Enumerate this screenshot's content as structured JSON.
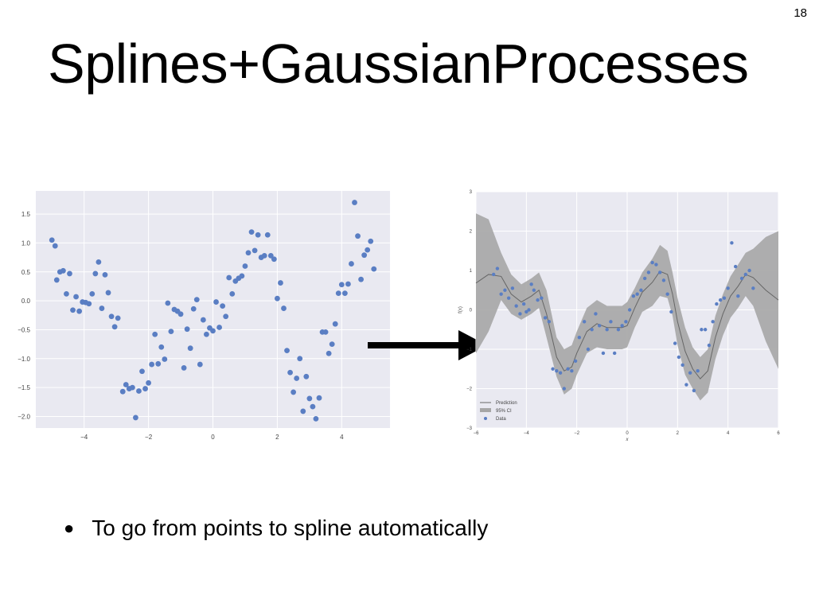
{
  "slide": {
    "page_number": "18",
    "title": "Splines+GaussianProcesses",
    "bullets": [
      "To go from points to spline automatically"
    ]
  },
  "colors": {
    "plot_background": "#e9e9f1",
    "grid": "#ffffff",
    "points": "#5a7ec3",
    "prediction_line": "#666666",
    "ci_band": "#a6a6a6",
    "arrow": "#000000"
  },
  "chart_data": [
    {
      "type": "scatter",
      "title": "",
      "xlabel": "",
      "ylabel": "",
      "xlim": [
        -5.5,
        5.5
      ],
      "ylim": [
        -2.2,
        1.9
      ],
      "xticks": [
        -4,
        -2,
        0,
        2,
        4
      ],
      "xtick_labels": [
        "−4",
        "−2",
        "0",
        "2",
        "4"
      ],
      "yticks": [
        1.5,
        1.0,
        0.5,
        0.0,
        -0.5,
        -1.0,
        -1.5,
        -2.0
      ],
      "ytick_labels": [
        "1.5",
        "1.0",
        "0.5",
        "0.0",
        "−0.5",
        "−1.0",
        "−1.5",
        "−2.0"
      ],
      "grid": true,
      "series": [
        {
          "x": [
            -5.0,
            -4.9,
            -4.85,
            -4.75,
            -4.65,
            -4.55,
            -4.45,
            -4.35,
            -4.25,
            -4.15,
            -4.05,
            -3.95,
            -3.85,
            -3.75,
            -3.65,
            -3.55,
            -3.45,
            -3.35,
            -3.25,
            -3.15,
            -3.05,
            -2.95,
            -2.8,
            -2.7,
            -2.6,
            -2.5,
            -2.4,
            -2.3,
            -2.2,
            -2.1,
            -2.0,
            -1.9,
            -1.8,
            -1.7,
            -1.6,
            -1.5,
            -1.4,
            -1.3,
            -1.2,
            -1.1,
            -1.0,
            -0.9,
            -0.8,
            -0.7,
            -0.6,
            -0.5,
            -0.4,
            -0.3,
            -0.2,
            -0.1,
            0.0,
            0.1,
            0.2,
            0.3,
            0.4,
            0.5,
            0.6,
            0.7,
            0.8,
            0.9,
            1.0,
            1.1,
            1.2,
            1.3,
            1.4,
            1.5,
            1.6,
            1.7,
            1.8,
            1.9,
            2.0,
            2.1,
            2.2,
            2.3,
            2.4,
            2.5,
            2.6,
            2.7,
            2.8,
            2.9,
            3.0,
            3.1,
            3.2,
            3.3,
            3.4,
            3.5,
            3.6,
            3.7,
            3.8,
            3.9,
            4.0,
            4.1,
            4.2,
            4.3,
            4.4,
            4.5,
            4.6,
            4.7,
            4.8,
            4.9,
            5.0
          ],
          "y": [
            1.05,
            0.95,
            0.36,
            0.5,
            0.52,
            0.12,
            0.47,
            -0.16,
            0.07,
            -0.18,
            -0.02,
            -0.03,
            -0.05,
            0.12,
            0.47,
            0.67,
            -0.13,
            0.45,
            0.14,
            -0.27,
            -0.45,
            -0.3,
            -1.57,
            -1.45,
            -1.52,
            -1.5,
            -2.02,
            -1.56,
            -1.22,
            -1.52,
            -1.42,
            -1.1,
            -0.58,
            -1.09,
            -0.8,
            -1.01,
            -0.04,
            -0.53,
            -0.15,
            -0.18,
            -0.23,
            -1.16,
            -0.49,
            -0.82,
            -0.14,
            0.02,
            -1.1,
            -0.33,
            -0.58,
            -0.47,
            -0.52,
            -0.02,
            -0.46,
            -0.09,
            -0.27,
            0.4,
            0.12,
            0.34,
            0.39,
            0.43,
            0.6,
            0.83,
            1.19,
            0.87,
            1.14,
            0.75,
            0.78,
            1.14,
            0.78,
            0.72,
            0.04,
            0.31,
            -0.13,
            -0.86,
            -1.24,
            -1.58,
            -1.34,
            -1.0,
            -1.91,
            -1.31,
            -1.69,
            -1.83,
            -2.04,
            -1.68,
            -0.54,
            -0.54,
            -0.91,
            -0.75,
            -0.4,
            0.13,
            0.28,
            0.13,
            0.29,
            0.64,
            1.7,
            1.12,
            0.37,
            0.79,
            0.88,
            1.03,
            0.55
          ]
        }
      ]
    },
    {
      "type": "line",
      "title": "",
      "xlabel": "x",
      "ylabel": "f(x)",
      "xlim": [
        -6,
        6
      ],
      "ylim": [
        -3,
        3
      ],
      "xticks": [
        -6,
        -4,
        -2,
        0,
        2,
        4,
        6
      ],
      "xtick_labels": [
        "−6",
        "−4",
        "−2",
        "0",
        "2",
        "4",
        "6"
      ],
      "yticks": [
        3,
        2,
        1,
        0,
        -1,
        -2,
        -3
      ],
      "ytick_labels": [
        "3",
        "2",
        "1",
        "0",
        "−1",
        "−2",
        "−3"
      ],
      "grid": true,
      "legend": {
        "placement": "lower-left",
        "entries": [
          "Prediction",
          "95% CI",
          "Data"
        ]
      },
      "series": [
        {
          "name": "Prediction",
          "x": [
            -6.0,
            -5.5,
            -5.0,
            -4.6,
            -4.2,
            -3.8,
            -3.5,
            -3.2,
            -2.8,
            -2.5,
            -2.2,
            -2.0,
            -1.6,
            -1.2,
            -0.8,
            -0.5,
            -0.2,
            0.0,
            0.3,
            0.6,
            1.0,
            1.3,
            1.6,
            1.8,
            2.0,
            2.3,
            2.6,
            2.9,
            3.2,
            3.5,
            3.8,
            4.1,
            4.4,
            4.7,
            5.0,
            5.5,
            6.0
          ],
          "y": [
            0.68,
            0.9,
            0.85,
            0.4,
            0.2,
            0.35,
            0.5,
            -0.1,
            -1.2,
            -1.55,
            -1.45,
            -1.1,
            -0.55,
            -0.35,
            -0.45,
            -0.45,
            -0.45,
            -0.4,
            0.05,
            0.45,
            0.7,
            0.98,
            0.9,
            0.4,
            -0.3,
            -1.05,
            -1.5,
            -1.75,
            -1.55,
            -0.7,
            -0.1,
            0.35,
            0.6,
            0.9,
            0.82,
            0.5,
            0.25
          ]
        },
        {
          "name": "95% CI",
          "x": [
            -6.0,
            -5.5,
            -5.0,
            -4.6,
            -4.2,
            -3.8,
            -3.5,
            -3.2,
            -2.8,
            -2.5,
            -2.2,
            -2.0,
            -1.6,
            -1.2,
            -0.8,
            -0.5,
            -0.2,
            0.0,
            0.3,
            0.6,
            1.0,
            1.3,
            1.6,
            1.8,
            2.0,
            2.3,
            2.6,
            2.9,
            3.2,
            3.5,
            3.8,
            4.1,
            4.4,
            4.7,
            5.0,
            5.5,
            6.0
          ],
          "upper": [
            2.45,
            2.3,
            1.45,
            0.9,
            0.65,
            0.8,
            0.95,
            0.5,
            -0.7,
            -1.0,
            -0.9,
            -0.55,
            0.05,
            0.25,
            0.1,
            0.1,
            0.1,
            0.2,
            0.55,
            0.95,
            1.3,
            1.65,
            1.5,
            0.95,
            0.3,
            -0.45,
            -0.95,
            -1.2,
            -1.0,
            -0.15,
            0.4,
            0.85,
            1.15,
            1.45,
            1.55,
            1.85,
            2.0
          ],
          "lower": [
            -1.1,
            -0.55,
            0.25,
            -0.1,
            -0.25,
            -0.1,
            0.05,
            -0.7,
            -1.7,
            -2.15,
            -2.0,
            -1.65,
            -1.1,
            -0.95,
            -1.0,
            -1.0,
            -1.0,
            -0.95,
            -0.45,
            -0.05,
            0.1,
            0.35,
            0.3,
            -0.15,
            -0.9,
            -1.65,
            -2.0,
            -2.3,
            -2.1,
            -1.25,
            -0.65,
            -0.2,
            0.05,
            0.35,
            0.1,
            -0.8,
            -1.5
          ]
        },
        {
          "name": "Data",
          "type": "scatter",
          "x": [
            -5.3,
            -5.15,
            -5.0,
            -4.85,
            -4.7,
            -4.55,
            -4.4,
            -4.25,
            -4.1,
            -4.0,
            -3.9,
            -3.8,
            -3.7,
            -3.55,
            -3.4,
            -3.25,
            -3.1,
            -2.95,
            -2.8,
            -2.65,
            -2.5,
            -2.35,
            -2.2,
            -2.05,
            -1.9,
            -1.7,
            -1.55,
            -1.4,
            -1.25,
            -1.1,
            -0.95,
            -0.8,
            -0.65,
            -0.5,
            -0.35,
            -0.2,
            -0.05,
            0.1,
            0.25,
            0.4,
            0.55,
            0.7,
            0.85,
            1.0,
            1.15,
            1.3,
            1.45,
            1.6,
            1.75,
            1.9,
            2.05,
            2.2,
            2.35,
            2.5,
            2.65,
            2.8,
            2.95,
            3.1,
            3.25,
            3.4,
            3.55,
            3.7,
            3.85,
            4.0,
            4.15,
            4.3,
            4.4,
            4.55,
            4.7,
            4.85,
            5.0
          ],
          "y": [
            0.9,
            1.05,
            0.4,
            0.5,
            0.3,
            0.55,
            0.1,
            -0.1,
            0.15,
            -0.05,
            0.0,
            0.65,
            0.5,
            0.25,
            0.3,
            -0.2,
            -0.3,
            -1.5,
            -1.55,
            -1.6,
            -2.0,
            -1.5,
            -1.55,
            -1.3,
            -0.7,
            -0.3,
            -1.0,
            -0.5,
            -0.1,
            -0.4,
            -1.1,
            -0.5,
            -0.3,
            -1.1,
            -0.5,
            -0.4,
            -0.3,
            0.0,
            0.35,
            0.4,
            0.5,
            0.8,
            0.95,
            1.2,
            1.15,
            0.95,
            0.75,
            0.4,
            -0.05,
            -0.85,
            -1.2,
            -1.4,
            -1.9,
            -1.6,
            -2.05,
            -1.55,
            -0.5,
            -0.5,
            -0.9,
            -0.3,
            0.15,
            0.25,
            0.3,
            0.55,
            1.7,
            1.1,
            0.35,
            0.8,
            0.9,
            1.0,
            0.55
          ]
        }
      ]
    }
  ]
}
